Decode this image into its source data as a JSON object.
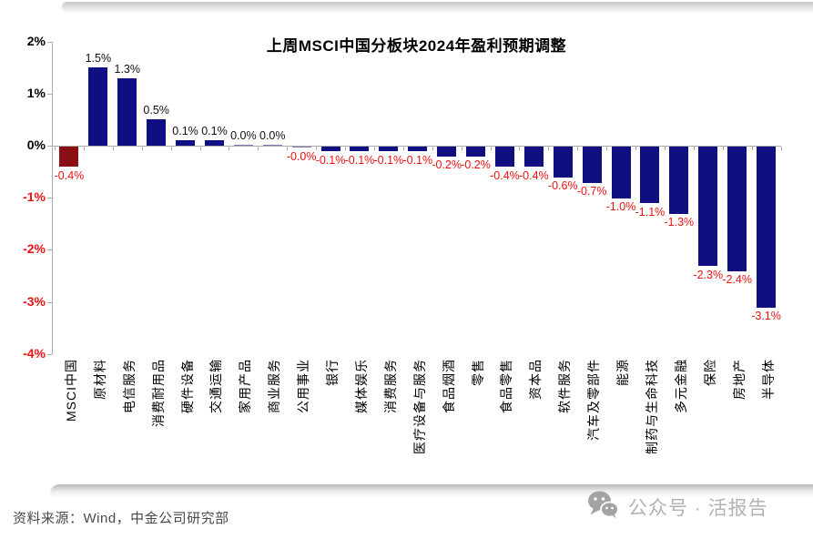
{
  "chart_data": {
    "type": "bar",
    "title": "上周MSCI中国分板块2024年盈利预期调整",
    "unit": "%",
    "categories": [
      "MSCI中国",
      "原材料",
      "电信服务",
      "消费耐用品",
      "硬件设备",
      "交通运输",
      "家用产品",
      "商业服务",
      "公用事业",
      "银行",
      "媒体娱乐",
      "消费服务",
      "医疗设备与服务",
      "食品烟酒",
      "零售",
      "食品零售",
      "资本品",
      "软件服务",
      "汽车及零部件",
      "能源",
      "制药与生命科技",
      "多元金融",
      "保险",
      "房地产",
      "半导体"
    ],
    "values": [
      -0.4,
      1.5,
      1.3,
      0.5,
      0.1,
      0.1,
      0.0,
      0.0,
      -0.0,
      -0.1,
      -0.1,
      -0.1,
      -0.1,
      -0.2,
      -0.2,
      -0.4,
      -0.4,
      -0.6,
      -0.7,
      -1.0,
      -1.1,
      -1.3,
      -2.3,
      -2.4,
      -3.1
    ],
    "bar_labels": [
      "-0.4%",
      "1.5%",
      "1.3%",
      "0.5%",
      "0.1%",
      "0.1%",
      "0.0%",
      "0.0%",
      "-0.0%",
      "-0.1%",
      "-0.1%",
      "-0.1%",
      "-0.1%",
      "-0.2%",
      "-0.2%",
      "-0.4%",
      "-0.4%",
      "-0.6%",
      "-0.7%",
      "-1.0%",
      "-1.1%",
      "-1.3%",
      "-2.3%",
      "-2.4%",
      "-3.1%"
    ],
    "highlight_category": "MSCI中国",
    "y_ticks": [
      "2%",
      "1%",
      "0%",
      "-1%",
      "-2%",
      "-3%",
      "-4%"
    ],
    "ylim": [
      -4,
      2
    ],
    "grid": false,
    "legend": "none",
    "colors": {
      "bar": "#0f0f82",
      "highlight_bar": "#8c0e15",
      "positive_label": "#111111",
      "negative_label": "#ee1111",
      "axis": "#ababab"
    }
  },
  "source": {
    "text": "资料来源：Wind，中金公司研究部"
  },
  "watermark": {
    "icon": "wechat-icon",
    "text": "公众号 · 活报告"
  }
}
